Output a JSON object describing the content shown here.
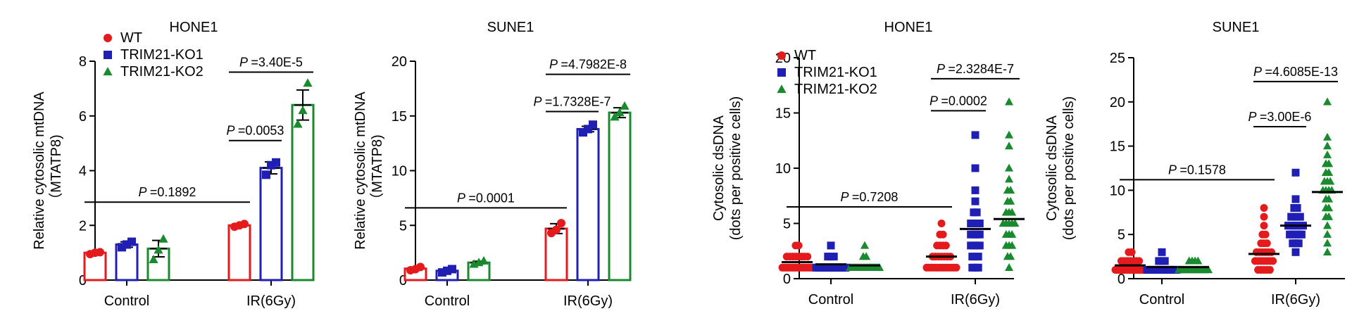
{
  "colors": {
    "WT": "#e41a1c",
    "TRIM21-KO1": "#1f1fb4",
    "TRIM21-KO2": "#1a8a2e",
    "axis": "#000000"
  },
  "chart_data": [
    {
      "type": "bar",
      "title": "HONE1",
      "ylabel": [
        "Relative cytosolic mtDNA",
        "（MTATP8)"
      ],
      "ylim": [
        0,
        8
      ],
      "yticks": [
        0,
        2,
        4,
        6,
        8
      ],
      "categories": [
        "Control",
        "IR(6Gy)"
      ],
      "legend": {
        "entries": [
          "WT",
          "TRIM21-KO1",
          "TRIM21-KO2"
        ],
        "placement": "top-left"
      },
      "series": [
        {
          "name": "WT",
          "values": [
            1.0,
            2.0
          ],
          "errors": [
            0.05,
            0.06
          ],
          "points": [
            [
              0.95,
              1.0,
              1.02
            ],
            [
              1.95,
              2.0,
              2.05
            ]
          ]
        },
        {
          "name": "TRIM21-KO1",
          "values": [
            1.3,
            4.1
          ],
          "errors": [
            0.1,
            0.22
          ],
          "points": [
            [
              1.2,
              1.3,
              1.4
            ],
            [
              3.85,
              4.2,
              4.3
            ]
          ]
        },
        {
          "name": "TRIM21-KO2",
          "values": [
            1.15,
            6.4
          ],
          "errors": [
            0.3,
            0.55
          ],
          "points": [
            [
              0.75,
              1.1,
              1.5
            ],
            [
              5.7,
              6.2,
              7.2
            ]
          ]
        }
      ],
      "annotations": [
        {
          "text": "=0.1892",
          "from": [
            0,
            0
          ],
          "to": [
            1,
            0
          ],
          "y": 2.85
        },
        {
          "text": "=0.0053",
          "from": [
            1,
            0
          ],
          "to": [
            1,
            1
          ],
          "y": 5.1
        },
        {
          "text": "=3.40E-5",
          "from": [
            1,
            0
          ],
          "to": [
            1,
            2
          ],
          "y": 7.6
        }
      ]
    },
    {
      "type": "bar",
      "title": "SUNE1",
      "ylabel": [
        "Relative cytosolic mtDNA",
        "（MTATP8)"
      ],
      "ylim": [
        0,
        20
      ],
      "yticks": [
        0,
        5,
        10,
        15,
        20
      ],
      "categories": [
        "Control",
        "IR(6Gy)"
      ],
      "series": [
        {
          "name": "WT",
          "values": [
            1.05,
            4.7
          ],
          "errors": [
            0.1,
            0.45
          ],
          "points": [
            [
              0.9,
              1.0,
              1.2
            ],
            [
              4.3,
              4.6,
              5.2
            ]
          ]
        },
        {
          "name": "TRIM21-KO1",
          "values": [
            0.85,
            13.8
          ],
          "errors": [
            0.12,
            0.25
          ],
          "points": [
            [
              0.7,
              0.85,
              1.0
            ],
            [
              13.5,
              13.8,
              14.2
            ]
          ]
        },
        {
          "name": "TRIM21-KO2",
          "values": [
            1.6,
            15.3
          ],
          "errors": [
            0.12,
            0.45
          ],
          "points": [
            [
              1.45,
              1.6,
              1.75
            ],
            [
              14.9,
              15.3,
              15.9
            ]
          ]
        }
      ],
      "annotations": [
        {
          "text": "=0.0001",
          "from": [
            0,
            0
          ],
          "to": [
            1,
            0
          ],
          "y": 6.6
        },
        {
          "text": "=1.7328E-7",
          "from": [
            1,
            0
          ],
          "to": [
            1,
            1
          ],
          "y": 15.4
        },
        {
          "text": "=4.7982E-8",
          "from": [
            1,
            0
          ],
          "to": [
            1,
            2
          ],
          "y": 18.8
        }
      ]
    },
    {
      "type": "scatter",
      "title": "HONE1",
      "ylabel": [
        "Cytosolic dsDNA",
        "(dots per positive cells)"
      ],
      "ylim": [
        0,
        20
      ],
      "yticks": [
        0,
        5,
        10,
        15,
        20
      ],
      "categories": [
        "Control",
        "IR(6Gy)"
      ],
      "legend": {
        "entries": [
          "WT",
          "TRIM21-KO1",
          "TRIM21-KO2"
        ],
        "placement": "top-left"
      },
      "series": [
        {
          "name": "WT",
          "means": [
            1.5,
            2.0
          ],
          "points": [
            [
              1,
              1,
              1,
              1,
              1,
              1,
              1,
              1,
              1,
              1,
              1,
              1,
              1,
              1,
              1,
              1,
              1,
              1,
              1,
              2,
              2,
              2,
              2,
              2,
              2,
              2,
              2,
              3,
              3
            ],
            [
              1,
              1,
              1,
              1,
              1,
              1,
              1,
              1,
              1,
              1,
              1,
              1,
              2,
              2,
              2,
              2,
              2,
              2,
              2,
              3,
              3,
              3,
              3,
              4,
              4,
              5
            ]
          ]
        },
        {
          "name": "TRIM21-KO1",
          "means": [
            1.3,
            4.5
          ],
          "points": [
            [
              1,
              1,
              1,
              1,
              1,
              1,
              1,
              1,
              1,
              1,
              1,
              1,
              1,
              1,
              1,
              1,
              1,
              1,
              1,
              1,
              1,
              1,
              2,
              2,
              2,
              3
            ],
            [
              1,
              1,
              1,
              2,
              2,
              2,
              3,
              3,
              3,
              3,
              4,
              4,
              4,
              4,
              5,
              5,
              5,
              5,
              6,
              6,
              7,
              8,
              10,
              13
            ]
          ]
        },
        {
          "name": "TRIM21-KO2",
          "means": [
            1.2,
            5.4
          ],
          "points": [
            [
              1,
              1,
              1,
              1,
              1,
              1,
              1,
              1,
              1,
              1,
              1,
              1,
              1,
              1,
              1,
              1,
              1,
              1,
              1,
              1,
              1,
              2,
              2,
              3
            ],
            [
              1,
              2,
              2,
              3,
              3,
              3,
              4,
              4,
              4,
              5,
              5,
              5,
              5,
              5,
              6,
              6,
              6,
              7,
              7,
              8,
              8,
              9,
              10,
              12,
              13,
              16
            ]
          ]
        }
      ],
      "annotations": [
        {
          "text": "=0.7208",
          "from": [
            0,
            0
          ],
          "to": [
            1,
            0
          ],
          "y": 6.5
        },
        {
          "text": "=0.0002",
          "from": [
            1,
            0
          ],
          "to": [
            1,
            1
          ],
          "y": 15.2
        },
        {
          "text": "=2.3284E-7",
          "from": [
            1,
            0
          ],
          "to": [
            1,
            2
          ],
          "y": 18.1
        }
      ]
    },
    {
      "type": "scatter",
      "title": "SUNE1",
      "ylabel": [
        "Cytosolic dsDNA",
        "(dots per positive cells)"
      ],
      "ylim": [
        0,
        25
      ],
      "yticks": [
        0,
        5,
        10,
        15,
        20,
        25
      ],
      "categories": [
        "Control",
        "IR(6Gy)"
      ],
      "series": [
        {
          "name": "WT",
          "means": [
            1.5,
            2.8
          ],
          "points": [
            [
              1,
              1,
              1,
              1,
              1,
              1,
              1,
              1,
              1,
              1,
              1,
              1,
              1,
              1,
              1,
              1,
              1,
              1,
              2,
              2,
              2,
              2,
              2,
              2,
              2,
              3,
              3
            ],
            [
              1,
              1,
              1,
              1,
              1,
              2,
              2,
              2,
              2,
              2,
              2,
              2,
              3,
              3,
              3,
              3,
              3,
              3,
              4,
              4,
              4,
              5,
              5,
              6,
              7,
              8
            ]
          ]
        },
        {
          "name": "TRIM21-KO1",
          "means": [
            1.3,
            6.0
          ],
          "points": [
            [
              1,
              1,
              1,
              1,
              1,
              1,
              1,
              1,
              1,
              1,
              1,
              1,
              1,
              1,
              1,
              1,
              1,
              1,
              1,
              1,
              1,
              2,
              2,
              2,
              3
            ],
            [
              3,
              4,
              4,
              4,
              5,
              5,
              5,
              5,
              5,
              6,
              6,
              6,
              6,
              6,
              6,
              7,
              7,
              7,
              7,
              8,
              8,
              9,
              12
            ]
          ]
        },
        {
          "name": "TRIM21-KO2",
          "means": [
            1.3,
            9.8
          ],
          "points": [
            [
              1,
              1,
              1,
              1,
              1,
              1,
              1,
              1,
              1,
              1,
              1,
              1,
              1,
              1,
              1,
              1,
              1,
              1,
              1,
              1,
              2,
              2,
              2,
              2
            ],
            [
              3,
              4,
              5,
              6,
              7,
              7,
              8,
              8,
              9,
              9,
              10,
              10,
              10,
              10,
              11,
              11,
              11,
              12,
              12,
              13,
              13,
              14,
              15,
              16,
              20
            ]
          ]
        }
      ],
      "annotations": [
        {
          "text": "=0.1578",
          "from": [
            0,
            0
          ],
          "to": [
            1,
            0
          ],
          "y": 11.2
        },
        {
          "text": "=3.00E-6",
          "from": [
            1,
            0
          ],
          "to": [
            1,
            1
          ],
          "y": 17.2
        },
        {
          "text": "=4.6085E-13",
          "from": [
            1,
            0
          ],
          "to": [
            1,
            2
          ],
          "y": 22.3
        }
      ]
    }
  ]
}
